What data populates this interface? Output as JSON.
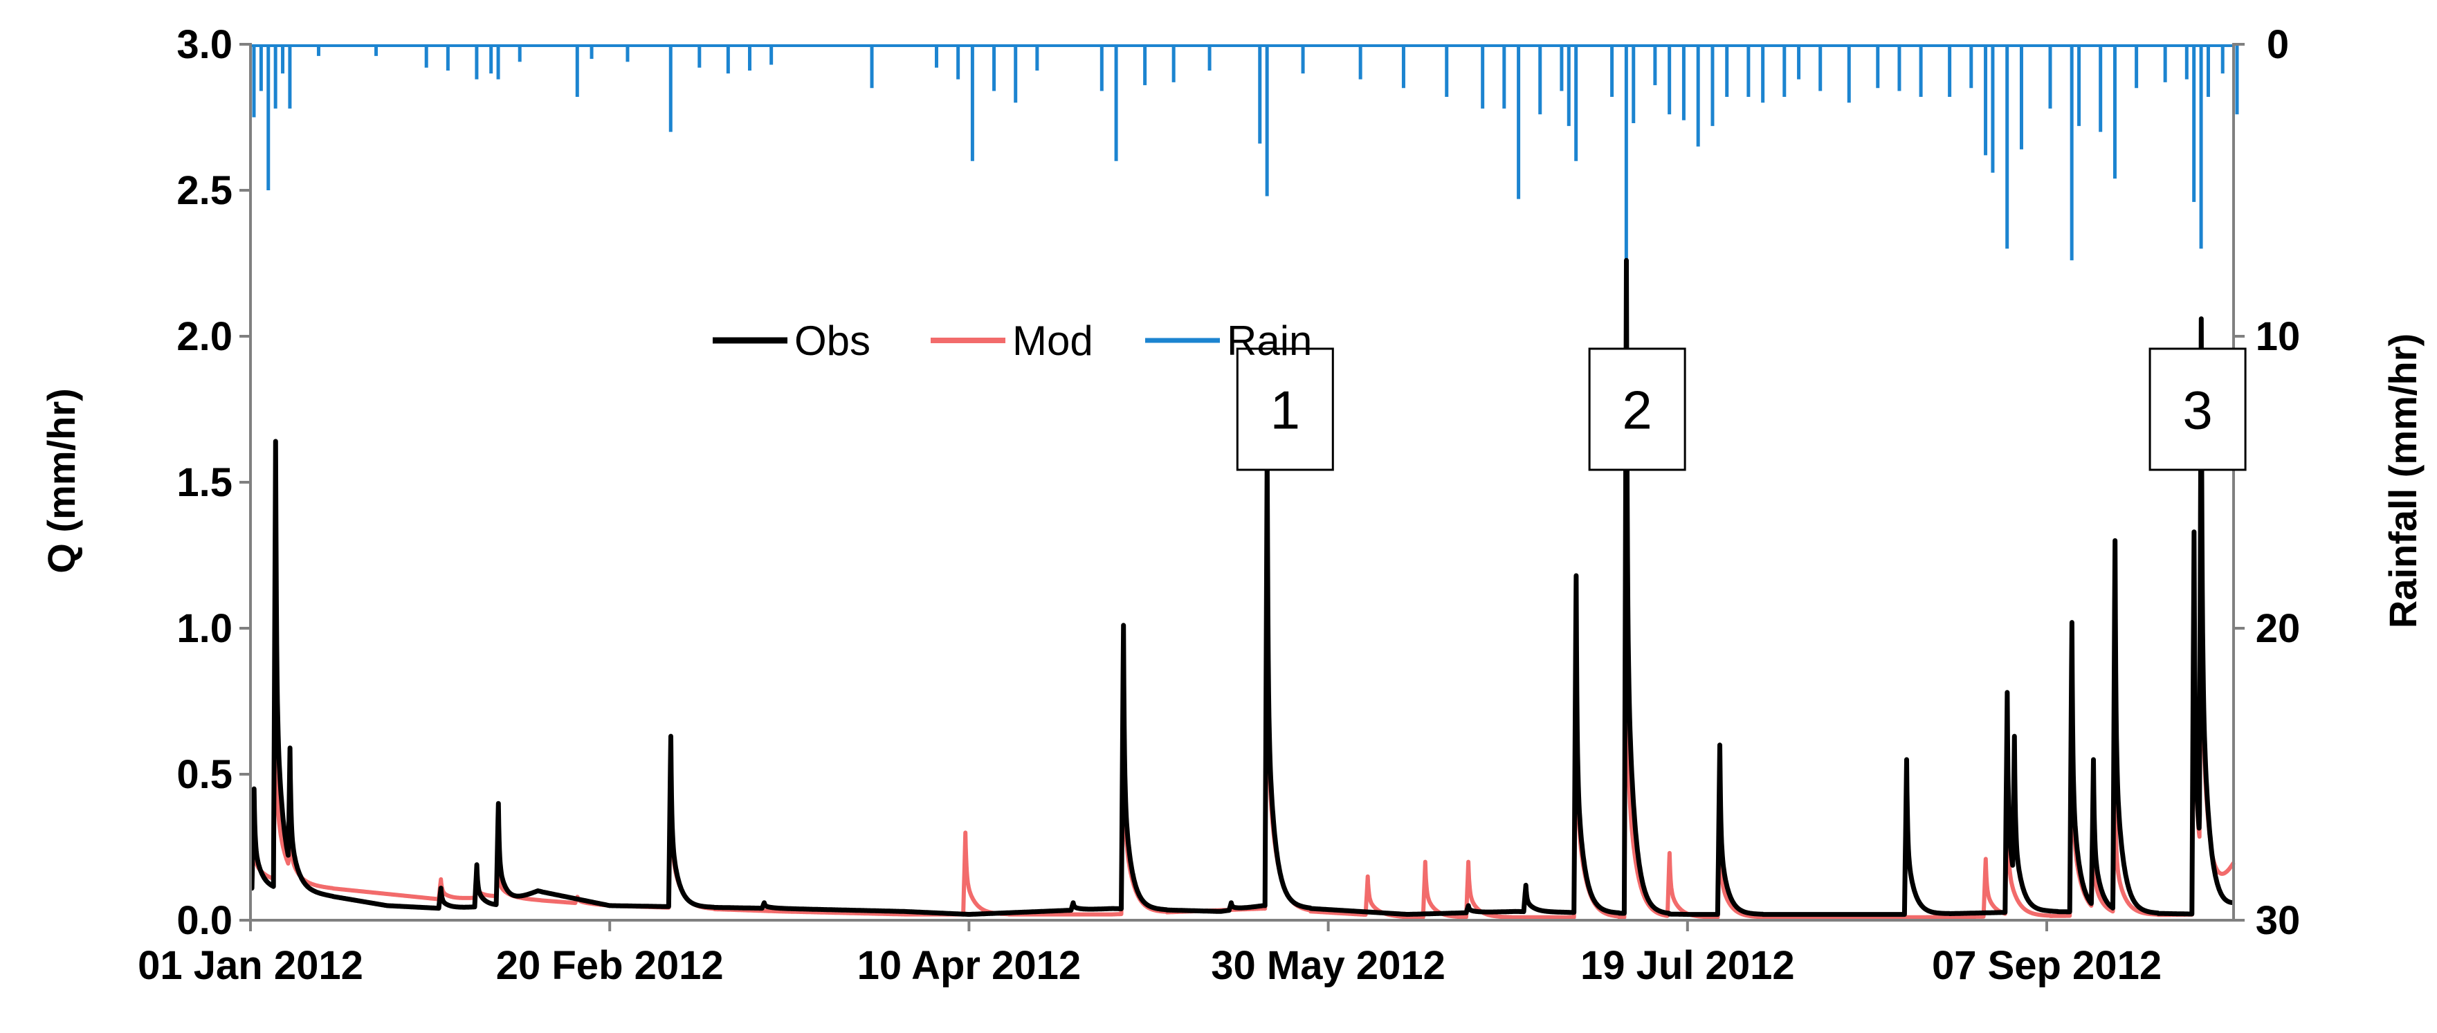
{
  "chart_data": {
    "type": "line",
    "title": "",
    "x_axis": {
      "type": "date",
      "range": [
        "2012-01-01",
        "2012-10-03"
      ],
      "tick_labels": [
        "01 Jan 2012",
        "20 Feb 2012",
        "10 Apr 2012",
        "30 May 2012",
        "19 Jul 2012",
        "07 Sep 2012"
      ]
    },
    "y_axis_left": {
      "label": "Q (mm/hr)",
      "range": [
        0,
        3
      ],
      "ticks": [
        "0.0",
        "0.5",
        "1.0",
        "1.5",
        "2.0",
        "2.5",
        "3.0"
      ]
    },
    "y_axis_right": {
      "label": "Rainfall (mm/hr)",
      "range": [
        0,
        30
      ],
      "inverted": true,
      "ticks": [
        "0",
        "10",
        "20",
        "30"
      ]
    },
    "grid": false,
    "legend": {
      "placement": "top-center",
      "entries": [
        "Obs",
        "Mod",
        "Rain"
      ]
    },
    "colors": {
      "obs": "#000000",
      "mod": "#f26b6b",
      "rain": "#1c84d0"
    },
    "series": [
      {
        "name": "Obs",
        "axis": "left",
        "baseline": [
          [
            "2012-01-01",
            0.11
          ],
          [
            "2012-01-08",
            0.1
          ],
          [
            "2012-01-20",
            0.05
          ],
          [
            "2012-01-28",
            0.04
          ],
          [
            "2012-02-05",
            0.05
          ],
          [
            "2012-02-10",
            0.1
          ],
          [
            "2012-02-20",
            0.05
          ],
          [
            "2012-03-15",
            0.04
          ],
          [
            "2012-04-01",
            0.03
          ],
          [
            "2012-04-10",
            0.02
          ],
          [
            "2012-04-30",
            0.04
          ],
          [
            "2012-05-15",
            0.03
          ],
          [
            "2012-05-21",
            0.05
          ],
          [
            "2012-06-10",
            0.02
          ],
          [
            "2012-06-25",
            0.03
          ],
          [
            "2012-07-19",
            0.02
          ],
          [
            "2012-08-20",
            0.02
          ],
          [
            "2012-09-07",
            0.03
          ],
          [
            "2012-09-30",
            0.02
          ],
          [
            "2012-10-03",
            0.05
          ]
        ],
        "peaks": [
          {
            "x": "2012-01-01",
            "y": 0.45
          },
          {
            "x": "2012-01-04",
            "y": 1.64
          },
          {
            "x": "2012-01-06",
            "y": 0.59
          },
          {
            "x": "2012-01-27",
            "y": 0.11
          },
          {
            "x": "2012-02-01",
            "y": 0.19
          },
          {
            "x": "2012-02-04",
            "y": 0.4
          },
          {
            "x": "2012-02-28",
            "y": 0.63
          },
          {
            "x": "2012-03-12",
            "y": 0.06
          },
          {
            "x": "2012-04-24",
            "y": 0.06
          },
          {
            "x": "2012-05-01",
            "y": 1.01
          },
          {
            "x": "2012-05-16",
            "y": 0.06
          },
          {
            "x": "2012-05-21",
            "y": 1.6
          },
          {
            "x": "2012-06-18",
            "y": 0.05
          },
          {
            "x": "2012-06-26",
            "y": 0.12
          },
          {
            "x": "2012-07-03",
            "y": 1.18
          },
          {
            "x": "2012-07-10",
            "y": 2.26
          },
          {
            "x": "2012-07-23",
            "y": 0.6
          },
          {
            "x": "2012-08-18",
            "y": 0.55
          },
          {
            "x": "2012-09-01",
            "y": 0.78
          },
          {
            "x": "2012-09-02",
            "y": 0.63
          },
          {
            "x": "2012-09-10",
            "y": 1.02
          },
          {
            "x": "2012-09-13",
            "y": 0.55
          },
          {
            "x": "2012-09-16",
            "y": 1.3
          },
          {
            "x": "2012-09-27",
            "y": 1.33
          },
          {
            "x": "2012-09-28",
            "y": 2.06
          }
        ]
      },
      {
        "name": "Mod",
        "axis": "left",
        "baseline": [
          [
            "2012-01-01",
            0.15
          ],
          [
            "2012-01-08",
            0.12
          ],
          [
            "2012-01-20",
            0.09
          ],
          [
            "2012-01-28",
            0.07
          ],
          [
            "2012-02-04",
            0.08
          ],
          [
            "2012-02-20",
            0.05
          ],
          [
            "2012-03-15",
            0.03
          ],
          [
            "2012-04-01",
            0.02
          ],
          [
            "2012-04-30",
            0.02
          ],
          [
            "2012-05-21",
            0.04
          ],
          [
            "2012-06-10",
            0.01
          ],
          [
            "2012-07-19",
            0.01
          ],
          [
            "2012-08-20",
            0.01
          ],
          [
            "2012-09-30",
            0.02
          ],
          [
            "2012-10-03",
            0.18
          ]
        ],
        "peaks": [
          {
            "x": "2012-01-01",
            "y": 0.27
          },
          {
            "x": "2012-01-04",
            "y": 0.77
          },
          {
            "x": "2012-01-06",
            "y": 0.35
          },
          {
            "x": "2012-01-27",
            "y": 0.14
          },
          {
            "x": "2012-02-01",
            "y": 0.13
          },
          {
            "x": "2012-02-04",
            "y": 0.18
          },
          {
            "x": "2012-02-15",
            "y": 0.08
          },
          {
            "x": "2012-02-28",
            "y": 0.51
          },
          {
            "x": "2012-04-09",
            "y": 0.3
          },
          {
            "x": "2012-05-01",
            "y": 0.74
          },
          {
            "x": "2012-05-21",
            "y": 1.25
          },
          {
            "x": "2012-06-04",
            "y": 0.15
          },
          {
            "x": "2012-06-12",
            "y": 0.2
          },
          {
            "x": "2012-06-18",
            "y": 0.2
          },
          {
            "x": "2012-07-03",
            "y": 0.91
          },
          {
            "x": "2012-07-10",
            "y": 1.25
          },
          {
            "x": "2012-07-16",
            "y": 0.23
          },
          {
            "x": "2012-07-23",
            "y": 0.33
          },
          {
            "x": "2012-08-29",
            "y": 0.21
          },
          {
            "x": "2012-09-01",
            "y": 0.42
          },
          {
            "x": "2012-09-10",
            "y": 0.73
          },
          {
            "x": "2012-09-13",
            "y": 0.3
          },
          {
            "x": "2012-09-16",
            "y": 0.45
          },
          {
            "x": "2012-09-27",
            "y": 1.1
          },
          {
            "x": "2012-09-28",
            "y": 1.62
          }
        ]
      },
      {
        "name": "Rain",
        "axis": "right",
        "events": [
          {
            "x": "2012-01-01",
            "y": 2.5
          },
          {
            "x": "2012-01-02",
            "y": 1.6
          },
          {
            "x": "2012-01-03",
            "y": 5.0
          },
          {
            "x": "2012-01-04",
            "y": 2.2
          },
          {
            "x": "2012-01-05",
            "y": 1.0
          },
          {
            "x": "2012-01-06",
            "y": 2.2
          },
          {
            "x": "2012-01-10",
            "y": 0.4
          },
          {
            "x": "2012-01-18",
            "y": 0.4
          },
          {
            "x": "2012-01-25",
            "y": 0.8
          },
          {
            "x": "2012-01-28",
            "y": 0.9
          },
          {
            "x": "2012-02-01",
            "y": 1.2
          },
          {
            "x": "2012-02-03",
            "y": 1.0
          },
          {
            "x": "2012-02-04",
            "y": 1.2
          },
          {
            "x": "2012-02-07",
            "y": 0.6
          },
          {
            "x": "2012-02-17",
            "y": 0.5
          },
          {
            "x": "2012-02-15",
            "y": 1.8
          },
          {
            "x": "2012-02-22",
            "y": 0.6
          },
          {
            "x": "2012-02-28",
            "y": 3.0
          },
          {
            "x": "2012-03-03",
            "y": 0.8
          },
          {
            "x": "2012-03-07",
            "y": 1.0
          },
          {
            "x": "2012-03-10",
            "y": 0.9
          },
          {
            "x": "2012-03-13",
            "y": 0.7
          },
          {
            "x": "2012-03-27",
            "y": 1.5
          },
          {
            "x": "2012-04-05",
            "y": 0.8
          },
          {
            "x": "2012-04-08",
            "y": 1.2
          },
          {
            "x": "2012-04-10",
            "y": 4.0
          },
          {
            "x": "2012-04-13",
            "y": 1.6
          },
          {
            "x": "2012-04-16",
            "y": 2.0
          },
          {
            "x": "2012-04-19",
            "y": 0.9
          },
          {
            "x": "2012-04-28",
            "y": 1.6
          },
          {
            "x": "2012-04-30",
            "y": 4.0
          },
          {
            "x": "2012-05-04",
            "y": 1.4
          },
          {
            "x": "2012-05-08",
            "y": 1.3
          },
          {
            "x": "2012-05-13",
            "y": 0.9
          },
          {
            "x": "2012-05-20",
            "y": 3.4
          },
          {
            "x": "2012-05-21",
            "y": 5.2
          },
          {
            "x": "2012-05-26",
            "y": 1.0
          },
          {
            "x": "2012-06-03",
            "y": 1.2
          },
          {
            "x": "2012-06-09",
            "y": 1.5
          },
          {
            "x": "2012-06-15",
            "y": 1.8
          },
          {
            "x": "2012-06-20",
            "y": 2.2
          },
          {
            "x": "2012-06-23",
            "y": 2.2
          },
          {
            "x": "2012-06-25",
            "y": 5.3
          },
          {
            "x": "2012-06-28",
            "y": 2.4
          },
          {
            "x": "2012-07-01",
            "y": 1.6
          },
          {
            "x": "2012-07-02",
            "y": 2.8
          },
          {
            "x": "2012-07-03",
            "y": 4.0
          },
          {
            "x": "2012-07-08",
            "y": 1.8
          },
          {
            "x": "2012-07-10",
            "y": 12.3
          },
          {
            "x": "2012-07-11",
            "y": 2.7
          },
          {
            "x": "2012-07-14",
            "y": 1.4
          },
          {
            "x": "2012-07-16",
            "y": 2.4
          },
          {
            "x": "2012-07-18",
            "y": 2.6
          },
          {
            "x": "2012-07-20",
            "y": 3.5
          },
          {
            "x": "2012-07-22",
            "y": 2.8
          },
          {
            "x": "2012-07-24",
            "y": 1.8
          },
          {
            "x": "2012-07-27",
            "y": 1.8
          },
          {
            "x": "2012-07-29",
            "y": 2.0
          },
          {
            "x": "2012-08-01",
            "y": 1.8
          },
          {
            "x": "2012-08-03",
            "y": 1.2
          },
          {
            "x": "2012-08-06",
            "y": 1.6
          },
          {
            "x": "2012-08-10",
            "y": 2.0
          },
          {
            "x": "2012-08-14",
            "y": 1.5
          },
          {
            "x": "2012-08-17",
            "y": 1.6
          },
          {
            "x": "2012-08-20",
            "y": 1.8
          },
          {
            "x": "2012-08-24",
            "y": 1.8
          },
          {
            "x": "2012-08-27",
            "y": 1.5
          },
          {
            "x": "2012-08-29",
            "y": 3.8
          },
          {
            "x": "2012-08-30",
            "y": 4.4
          },
          {
            "x": "2012-09-01",
            "y": 7.0
          },
          {
            "x": "2012-09-03",
            "y": 3.6
          },
          {
            "x": "2012-09-07",
            "y": 2.2
          },
          {
            "x": "2012-09-10",
            "y": 7.4
          },
          {
            "x": "2012-09-11",
            "y": 2.8
          },
          {
            "x": "2012-09-14",
            "y": 3.0
          },
          {
            "x": "2012-09-16",
            "y": 4.6
          },
          {
            "x": "2012-09-19",
            "y": 1.5
          },
          {
            "x": "2012-09-23",
            "y": 1.3
          },
          {
            "x": "2012-09-26",
            "y": 1.2
          },
          {
            "x": "2012-09-27",
            "y": 5.4
          },
          {
            "x": "2012-09-28",
            "y": 7.0
          },
          {
            "x": "2012-09-29",
            "y": 1.8
          },
          {
            "x": "2012-10-01",
            "y": 1.0
          },
          {
            "x": "2012-10-03",
            "y": 2.4
          }
        ]
      }
    ],
    "annotations": [
      {
        "label": "1",
        "x": "2012-05-24",
        "y": 1.75
      },
      {
        "label": "2",
        "x": "2012-07-12",
        "y": 1.75
      },
      {
        "label": "3",
        "x": "2012-09-28",
        "y": 1.75
      }
    ]
  }
}
